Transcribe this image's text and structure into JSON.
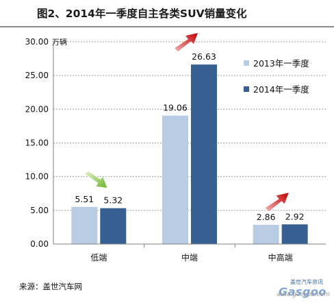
{
  "header": {
    "title": "图2、2014年一季度自主各类SUV销量变化"
  },
  "footer": {
    "source": "来源：盖世汽车网"
  },
  "watermark": {
    "logo": "Gasgoo",
    "cn": "盖世汽车资讯",
    "domain": "auto.gasgoo.com"
  },
  "chart_data": {
    "type": "bar",
    "title": "图2、2014年一季度自主各类SUV销量变化",
    "ylabel": "万辆",
    "xlabel": "",
    "ylim": [
      0,
      30
    ],
    "yticks": [
      "0.00",
      "5.00",
      "10.00",
      "15.00",
      "20.00",
      "25.00",
      "30.00"
    ],
    "categories": [
      "低端",
      "中端",
      "中高端"
    ],
    "series": [
      {
        "name": "2013年一季度",
        "values": [
          5.51,
          19.06,
          2.86
        ],
        "labels": [
          "5.51",
          "19.06",
          "2.86"
        ],
        "color": "#b8cce4"
      },
      {
        "name": "2014年一季度",
        "values": [
          5.32,
          26.63,
          2.92
        ],
        "labels": [
          "5.32",
          "26.63",
          "2.92"
        ],
        "color": "#376092"
      }
    ],
    "grid": true,
    "legend_position": "top-right",
    "trend_arrows": [
      "down",
      "up",
      "up"
    ],
    "colors": {
      "arrow_up": "#c00000",
      "arrow_down": "#7fbf3f",
      "grid": "#a0a0a0",
      "axis": "#7f7f7f"
    }
  }
}
